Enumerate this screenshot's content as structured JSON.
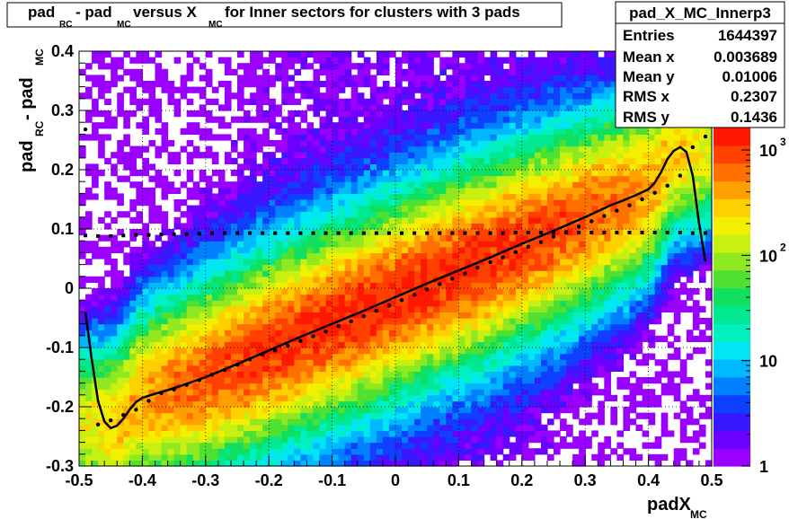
{
  "chart_data": {
    "type": "heatmap",
    "title": {
      "parts": [
        {
          "text": "pad",
          "sub": "RC"
        },
        {
          "text": " - pad",
          "sub": "MC"
        },
        {
          "text": " versus X",
          "sub": "MC"
        },
        {
          "text": " for Inner sectors for clusters with 3 pads",
          "sub": ""
        }
      ]
    },
    "xlabel": {
      "text": "padX",
      "sub": "MC"
    },
    "ylabel": {
      "text": "pad",
      "sub": "RC",
      "text2": " - pad",
      "sub2": "MC"
    },
    "xlim": [
      -0.5,
      0.5
    ],
    "ylim": [
      -0.3,
      0.4
    ],
    "x_ticks": [
      "-0.5",
      "-0.4",
      "-0.3",
      "-0.2",
      "-0.1",
      "0",
      "0.1",
      "0.2",
      "0.3",
      "0.4",
      "0.5"
    ],
    "y_ticks": [
      "-0.3",
      "-0.2",
      "-0.1",
      "0",
      "0.1",
      "0.2",
      "0.3",
      "0.4"
    ],
    "z_scale": "log",
    "z_ticks": [
      {
        "base": "1",
        "exp": ""
      },
      {
        "base": "10",
        "exp": ""
      },
      {
        "base": "10",
        "exp": "2"
      },
      {
        "base": "10",
        "exp": "3"
      }
    ],
    "grid": true,
    "stats": {
      "name": "pad_X_MC_Innerp3",
      "rows": [
        {
          "label": "Entries",
          "value": "1644397"
        },
        {
          "label": "Mean x",
          "value": "0.003689"
        },
        {
          "label": "Mean y",
          "value": "0.01006"
        },
        {
          "label": "RMS x",
          "value": "0.2307"
        },
        {
          "label": "RMS y",
          "value": "0.1436"
        }
      ]
    },
    "profile_mean_x": [
      -0.49,
      -0.47,
      -0.45,
      -0.43,
      -0.41,
      -0.39,
      -0.37,
      -0.35,
      -0.33,
      -0.31,
      -0.29,
      -0.27,
      -0.25,
      -0.23,
      -0.21,
      -0.19,
      -0.17,
      -0.15,
      -0.13,
      -0.11,
      -0.09,
      -0.07,
      -0.05,
      -0.03,
      -0.01,
      0.01,
      0.03,
      0.05,
      0.07,
      0.09,
      0.11,
      0.13,
      0.15,
      0.17,
      0.19,
      0.21,
      0.23,
      0.25,
      0.27,
      0.29,
      0.31,
      0.33,
      0.35,
      0.37,
      0.39,
      0.41,
      0.43,
      0.45,
      0.47,
      0.49
    ],
    "profile_mean_y": [
      0.268,
      -0.23,
      -0.223,
      -0.214,
      -0.205,
      -0.19,
      -0.177,
      -0.171,
      -0.163,
      -0.155,
      -0.146,
      -0.138,
      -0.129,
      -0.12,
      -0.112,
      -0.105,
      -0.097,
      -0.089,
      -0.081,
      -0.073,
      -0.064,
      -0.056,
      -0.047,
      -0.038,
      -0.029,
      -0.02,
      -0.011,
      -0.002,
      0.007,
      0.016,
      0.025,
      0.035,
      0.044,
      0.052,
      0.061,
      0.07,
      0.078,
      0.087,
      0.095,
      0.104,
      0.113,
      0.122,
      0.131,
      0.14,
      0.15,
      0.161,
      0.173,
      0.19,
      0.238,
      0.256
    ],
    "profile_rms_y": [
      0.089,
      0.088,
      0.088,
      0.089,
      0.09,
      0.09,
      0.091,
      0.091,
      0.091,
      0.092,
      0.093,
      0.093,
      0.093,
      0.093,
      0.093,
      0.093,
      0.093,
      0.093,
      0.093,
      0.093,
      0.093,
      0.093,
      0.093,
      0.093,
      0.093,
      0.093,
      0.093,
      0.093,
      0.093,
      0.093,
      0.093,
      0.093,
      0.093,
      0.093,
      0.094,
      0.094,
      0.094,
      0.094,
      0.094,
      0.094,
      0.094,
      0.094,
      0.094,
      0.094,
      0.094,
      0.094,
      0.094,
      0.094,
      0.093,
      0.093
    ],
    "fit_curve_x": [
      -0.49,
      -0.48,
      -0.47,
      -0.46,
      -0.45,
      -0.44,
      -0.43,
      -0.42,
      -0.41,
      -0.4,
      -0.38,
      -0.36,
      -0.34,
      -0.3,
      -0.25,
      -0.2,
      -0.15,
      -0.1,
      -0.05,
      0.0,
      0.05,
      0.1,
      0.15,
      0.2,
      0.25,
      0.3,
      0.34,
      0.36,
      0.38,
      0.4,
      0.41,
      0.42,
      0.43,
      0.44,
      0.45,
      0.46,
      0.47,
      0.48,
      0.49
    ],
    "fit_curve_y": [
      -0.04,
      -0.12,
      -0.19,
      -0.225,
      -0.236,
      -0.232,
      -0.22,
      -0.205,
      -0.192,
      -0.185,
      -0.178,
      -0.172,
      -0.165,
      -0.15,
      -0.128,
      -0.105,
      -0.082,
      -0.06,
      -0.038,
      -0.015,
      0.008,
      0.03,
      0.052,
      0.075,
      0.097,
      0.12,
      0.14,
      0.148,
      0.157,
      0.167,
      0.178,
      0.196,
      0.218,
      0.232,
      0.238,
      0.23,
      0.19,
      0.11,
      0.045
    ],
    "colors": {
      "plot_bg": "#ffffff",
      "markers": "#000000",
      "fit_line": "#000000",
      "palette": [
        "#9a00ff",
        "#6a00ff",
        "#3a18ff",
        "#1040ff",
        "#0080ff",
        "#00b8ff",
        "#00e6f2",
        "#00f0c0",
        "#00e890",
        "#10e060",
        "#50e030",
        "#90e820",
        "#c8f010",
        "#f2f000",
        "#ffd000",
        "#ffa000",
        "#ff7000",
        "#ff4000",
        "#ff1800"
      ]
    }
  }
}
